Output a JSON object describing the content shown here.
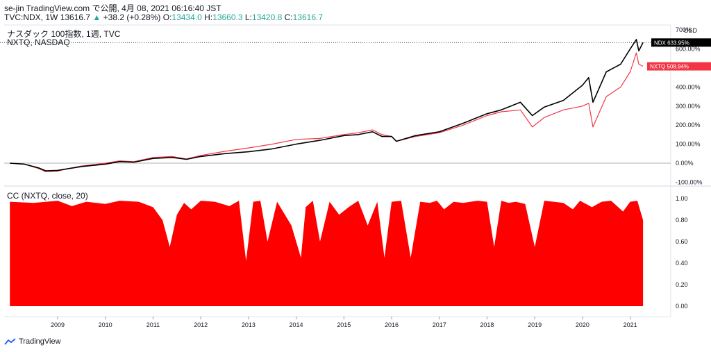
{
  "header": {
    "line1": "se-jin TradingView.com で公開, 4月 08, 2021 06:16:40 JST",
    "symbol": "TVC:NDX, 1W",
    "price": "13616.7",
    "arrow": "▲",
    "change": "+38.2 (+0.28%)",
    "o_label": "O:",
    "o_value": "13434.0",
    "h_label": "H:",
    "h_value": "13660.3",
    "l_label": "L:",
    "l_value": "13420.8",
    "c_label": "C:",
    "c_value": "13616.7"
  },
  "main_pane": {
    "legend_primary": "ナスダック 100指数, 1週, TVC",
    "legend_compare": "NXTQ, NASDAQ",
    "currency": "USD",
    "badges": [
      {
        "name": "NDX",
        "value": "633.95%",
        "color": "#000000"
      },
      {
        "name": "NXTQ",
        "value": "508.94%",
        "color": "#f23645"
      }
    ]
  },
  "sub_pane": {
    "legend": "CC (NXTQ, close, 20)"
  },
  "brand": "TradingView",
  "colors": {
    "ndx": "#000000",
    "nxtq": "#f23645",
    "cc_fill": "#ff0000",
    "grid": "#e0e3eb"
  },
  "chart_data": [
    {
      "type": "line",
      "title": "ナスダック 100指数, 1週, TVC",
      "y_scale": "percent",
      "ylim": [
        -110,
        720
      ],
      "y_ticks": [
        "700%",
        "600.00%",
        "500.00%",
        "400.00%",
        "300.00%",
        "200.00%",
        "100.00%",
        "0.00%",
        "-100.00%"
      ],
      "x_ticks": [
        "2009",
        "2010",
        "2011",
        "2012",
        "2013",
        "2014",
        "2015",
        "2016",
        "2017",
        "2018",
        "2019",
        "2020",
        "2021"
      ],
      "series": [
        {
          "name": "NDX",
          "x": [
            2008.0,
            2008.3,
            2008.6,
            2008.75,
            2009.0,
            2009.2,
            2009.5,
            2010.0,
            2010.3,
            2010.6,
            2011.0,
            2011.4,
            2011.7,
            2012.0,
            2012.5,
            2013.0,
            2013.5,
            2014.0,
            2014.5,
            2015.0,
            2015.3,
            2015.6,
            2015.8,
            2016.0,
            2016.1,
            2016.5,
            2017.0,
            2017.5,
            2018.0,
            2018.3,
            2018.7,
            2018.95,
            2019.2,
            2019.6,
            2020.0,
            2020.13,
            2020.22,
            2020.5,
            2020.8,
            2021.0,
            2021.13,
            2021.18,
            2021.27
          ],
          "values": [
            0,
            -5,
            -25,
            -40,
            -38,
            -30,
            -18,
            -5,
            8,
            5,
            25,
            30,
            20,
            35,
            50,
            60,
            75,
            100,
            120,
            145,
            150,
            165,
            140,
            140,
            115,
            145,
            165,
            210,
            260,
            280,
            320,
            250,
            295,
            330,
            410,
            450,
            320,
            480,
            520,
            600,
            650,
            590,
            634
          ]
        },
        {
          "name": "NXTQ",
          "x": [
            2008.0,
            2008.3,
            2008.6,
            2008.75,
            2009.0,
            2009.2,
            2009.5,
            2010.0,
            2010.3,
            2010.6,
            2011.0,
            2011.4,
            2011.7,
            2012.0,
            2012.5,
            2013.0,
            2013.5,
            2014.0,
            2014.5,
            2015.0,
            2015.3,
            2015.6,
            2015.8,
            2016.0,
            2016.1,
            2016.5,
            2017.0,
            2017.5,
            2018.0,
            2018.3,
            2018.7,
            2018.95,
            2019.2,
            2019.6,
            2020.0,
            2020.13,
            2020.22,
            2020.5,
            2020.8,
            2021.0,
            2021.13,
            2021.18,
            2021.27
          ],
          "values": [
            0,
            -5,
            -28,
            -45,
            -42,
            -30,
            -15,
            0,
            12,
            8,
            30,
            35,
            22,
            40,
            62,
            80,
            100,
            125,
            130,
            150,
            160,
            175,
            150,
            140,
            115,
            140,
            160,
            200,
            250,
            270,
            280,
            190,
            240,
            280,
            300,
            315,
            190,
            350,
            400,
            480,
            580,
            520,
            509
          ]
        }
      ]
    },
    {
      "type": "area",
      "title": "CC (NXTQ, close, 20)",
      "ylim": [
        -0.02,
        1.02
      ],
      "y_ticks": [
        "1.00",
        "0.80",
        "0.60",
        "0.40",
        "0.20",
        "0.00"
      ],
      "x_ticks": [
        "2009",
        "2010",
        "2011",
        "2012",
        "2013",
        "2014",
        "2015",
        "2016",
        "2017",
        "2018",
        "2019",
        "2020",
        "2021"
      ],
      "series": [
        {
          "name": "CC",
          "x": [
            2008.0,
            2008.5,
            2009.0,
            2009.3,
            2009.6,
            2010.0,
            2010.3,
            2010.7,
            2011.0,
            2011.2,
            2011.35,
            2011.5,
            2011.65,
            2011.8,
            2012.0,
            2012.3,
            2012.6,
            2012.8,
            2012.95,
            2013.1,
            2013.25,
            2013.4,
            2013.6,
            2013.9,
            2014.1,
            2014.2,
            2014.35,
            2014.5,
            2014.7,
            2014.9,
            2015.1,
            2015.3,
            2015.5,
            2015.7,
            2015.85,
            2016.0,
            2016.2,
            2016.4,
            2016.6,
            2016.8,
            2016.95,
            2017.1,
            2017.3,
            2017.5,
            2017.8,
            2018.0,
            2018.15,
            2018.3,
            2018.45,
            2018.6,
            2018.8,
            2019.0,
            2019.2,
            2019.4,
            2019.6,
            2019.8,
            2019.95,
            2020.2,
            2020.4,
            2020.6,
            2020.85,
            2021.0,
            2021.15,
            2021.27
          ],
          "values": [
            0.97,
            0.96,
            0.98,
            0.93,
            0.97,
            0.95,
            0.98,
            0.97,
            0.92,
            0.8,
            0.55,
            0.85,
            0.96,
            0.9,
            0.98,
            0.97,
            0.93,
            0.98,
            0.42,
            0.97,
            0.98,
            0.6,
            0.97,
            0.75,
            0.45,
            0.92,
            0.98,
            0.6,
            0.97,
            0.85,
            0.92,
            0.98,
            0.75,
            0.97,
            0.45,
            0.97,
            0.98,
            0.45,
            0.97,
            0.96,
            0.98,
            0.9,
            0.97,
            0.96,
            0.98,
            0.97,
            0.55,
            0.98,
            0.96,
            0.97,
            0.95,
            0.55,
            0.98,
            0.97,
            0.96,
            0.9,
            0.98,
            0.92,
            0.97,
            0.98,
            0.88,
            0.97,
            0.98,
            0.8
          ]
        }
      ]
    }
  ]
}
